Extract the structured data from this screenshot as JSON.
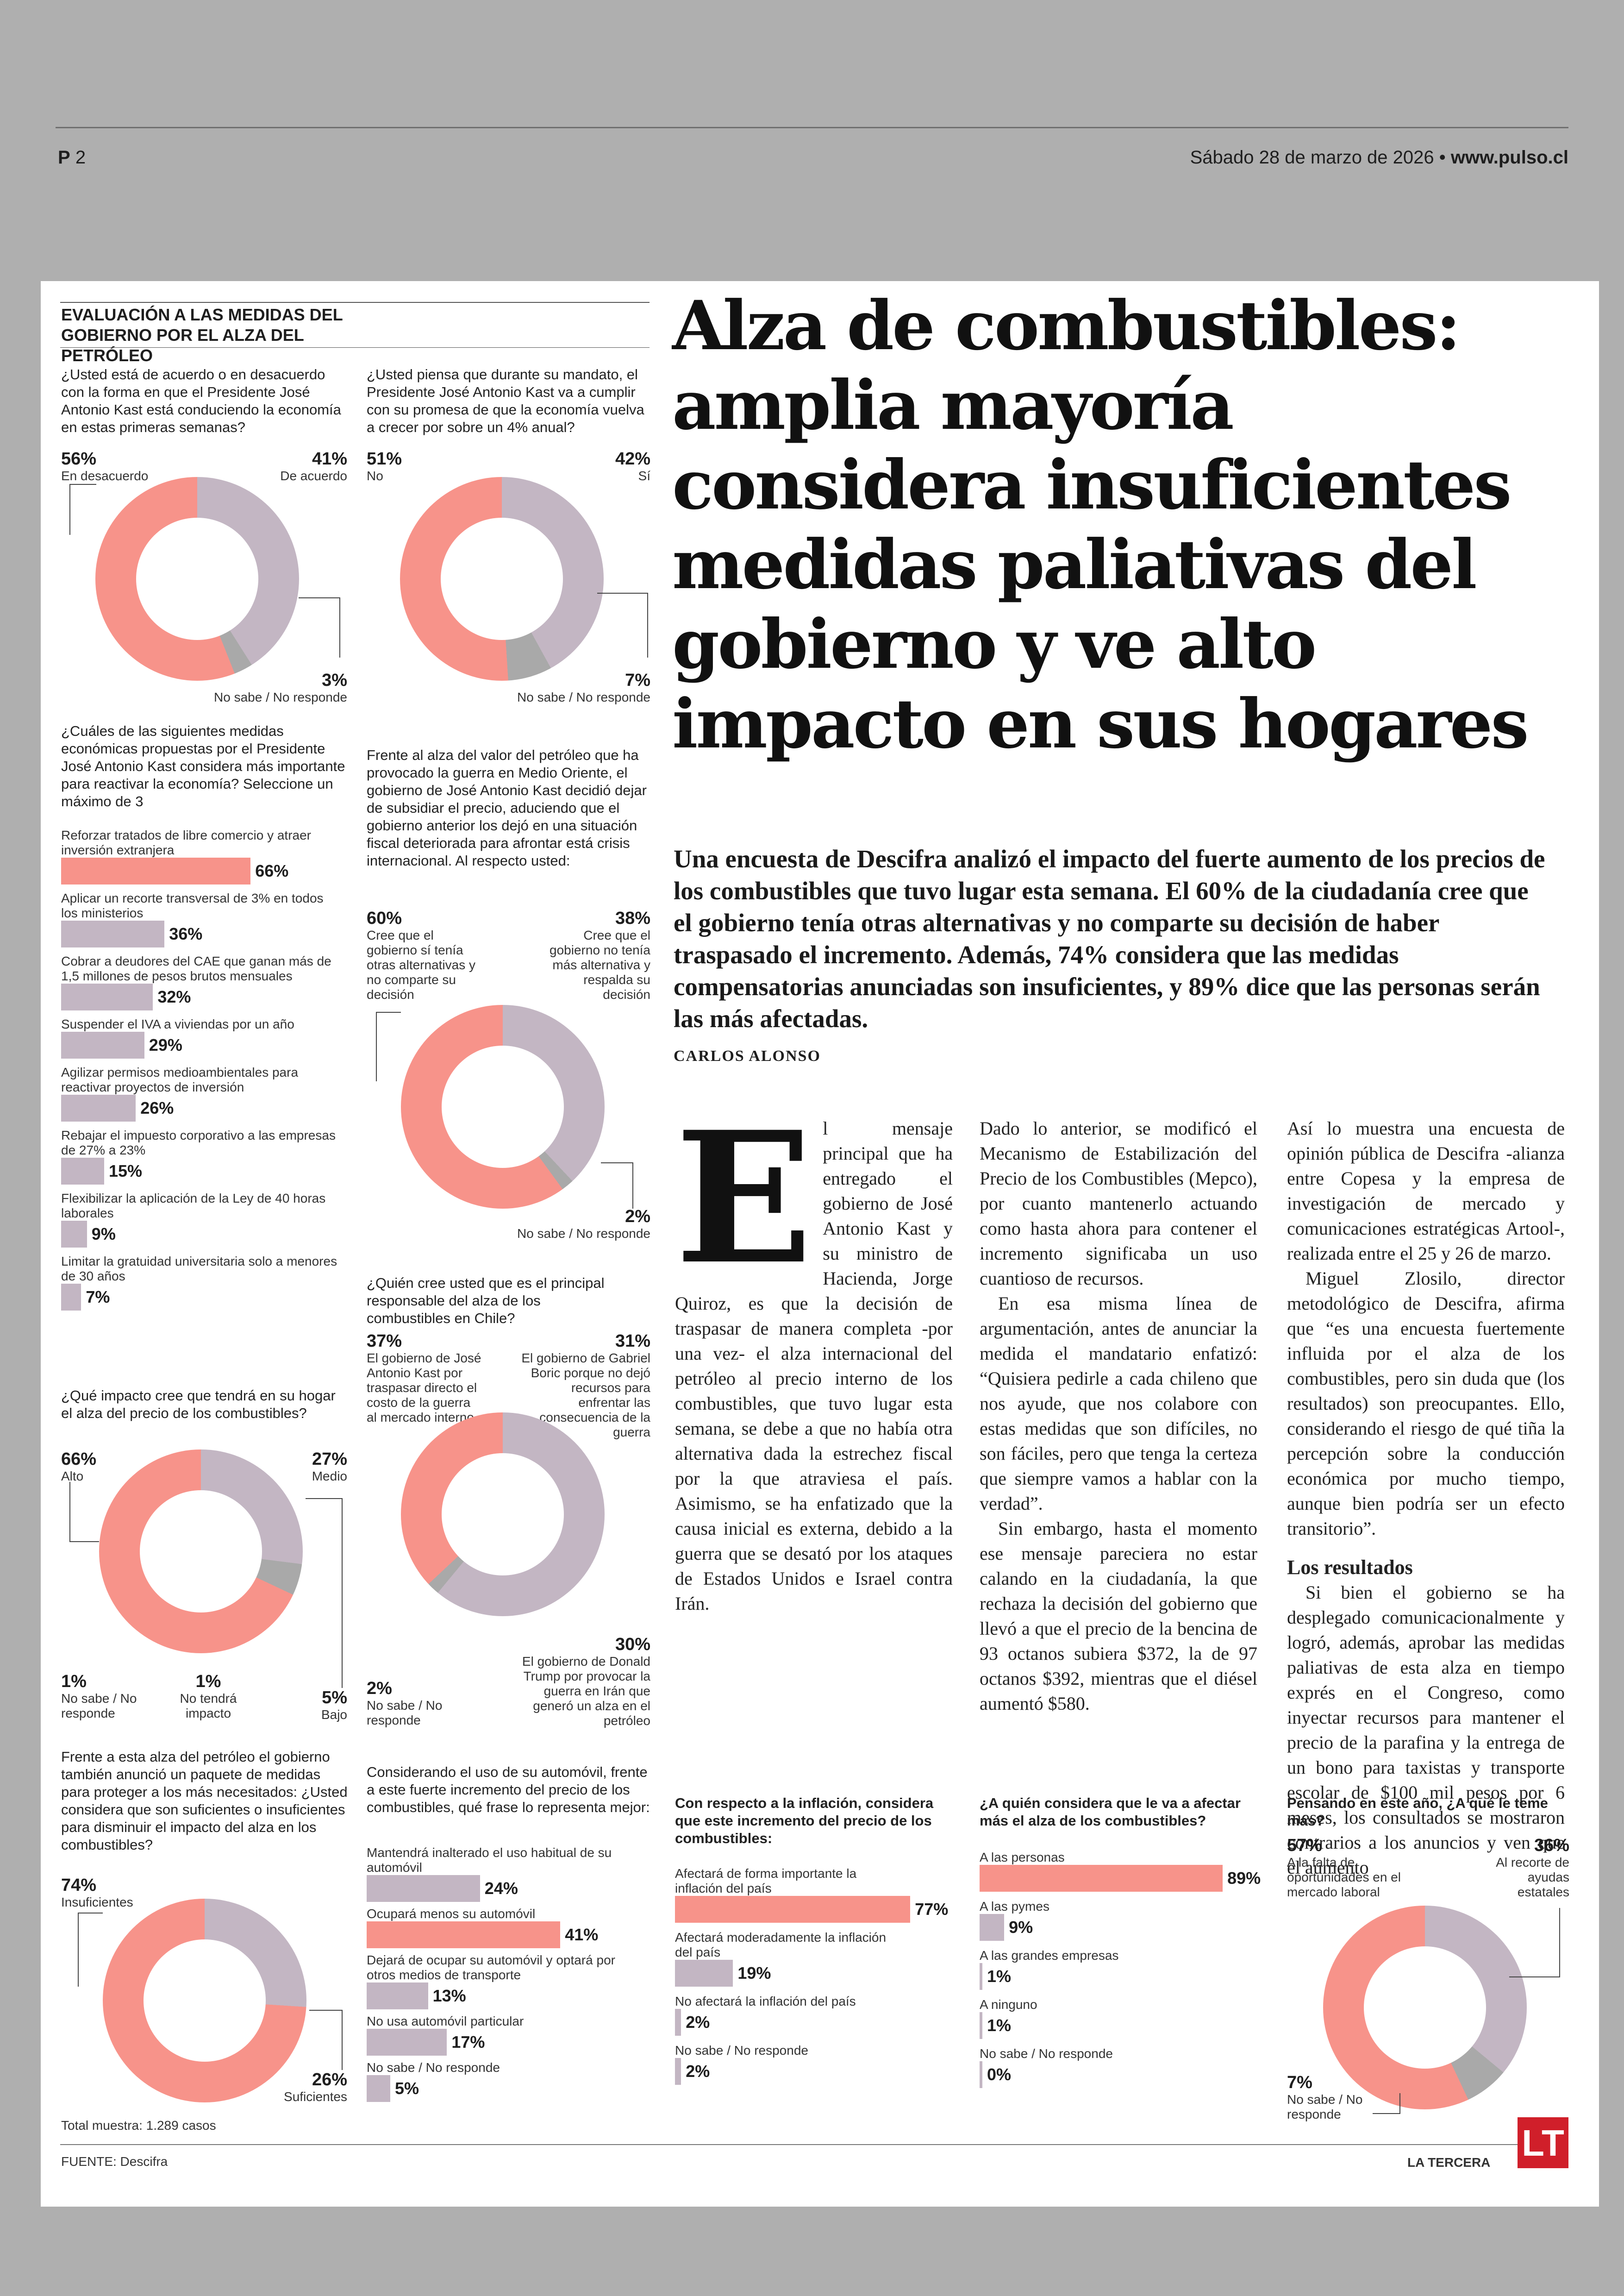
{
  "masthead": {
    "page_label": "P",
    "page_number": "2",
    "date": "Sábado 28 de marzo de 2026",
    "site": "www.pulso.cl"
  },
  "section_title": "EVALUACIÓN A LAS MEDIDAS DEL GOBIERNO POR EL ALZA DEL PETRÓLEO",
  "headline": "Alza de combustibles: amplia mayoría considera insuficientes medidas paliativas del gobierno y ve alto impacto en sus hogares",
  "lead": "Una encuesta de Descifra analizó el impacto del fuerte aumento de los precios de los combustibles que tuvo lugar esta semana. El 60% de la ciudadanía cree que el gobierno tenía otras alternativas y no comparte su decisión de haber traspasado el incremento. Además, 74% considera que las medidas compensatorias anunciadas son insuficientes, y 89% dice que las personas serán las más afectadas.",
  "byline": "CARLOS ALONSO",
  "colors": {
    "pink": "#f7938a",
    "mauve": "#c3b6c3",
    "grey": "#a9a9a9",
    "logo": "#d01f2a"
  },
  "chart_data": [
    {
      "type": "pie",
      "title": "¿Usted está de acuerdo o en desacuerdo con la forma en que el Presidente José Antonio Kast está conduciendo la economía en estas primeras semanas?",
      "slices": [
        {
          "pct": "56%",
          "label": "En desacuerdo",
          "value": 56
        },
        {
          "pct": "41%",
          "label": "De acuerdo",
          "value": 41
        },
        {
          "pct": "3%",
          "label": "No sabe / No responde",
          "value": 3
        }
      ]
    },
    {
      "type": "pie",
      "title": "¿Usted piensa que durante su mandato, el Presidente José Antonio Kast va a cumplir con su promesa de que la economía vuelva a crecer por sobre un 4% anual?",
      "slices": [
        {
          "pct": "51%",
          "label": "No",
          "value": 51
        },
        {
          "pct": "42%",
          "label": "Sí",
          "value": 42
        },
        {
          "pct": "7%",
          "label": "No sabe / No responde",
          "value": 7
        }
      ]
    },
    {
      "type": "bar",
      "title": "¿Cuáles de las siguientes medidas económicas propuestas por el Presidente José Antonio Kast considera más importante para reactivar la economía? Seleccione un máximo de 3",
      "items": [
        {
          "label": "Reforzar tratados de libre comercio y atraer inversión extranjera",
          "pct": "66%",
          "value": 66
        },
        {
          "label": "Aplicar un recorte transversal de 3% en todos los ministerios",
          "pct": "36%",
          "value": 36
        },
        {
          "label": "Cobrar a deudores del CAE que ganan más de 1,5 millones de pesos brutos mensuales",
          "pct": "32%",
          "value": 32
        },
        {
          "label": "Suspender el IVA a viviendas por un año",
          "pct": "29%",
          "value": 29
        },
        {
          "label": "Agilizar permisos medioambientales para reactivar proyectos de inversión",
          "pct": "26%",
          "value": 26
        },
        {
          "label": "Rebajar el impuesto corporativo a las empresas de 27% a 23%",
          "pct": "15%",
          "value": 15
        },
        {
          "label": "Flexibilizar la aplicación de la Ley de 40 horas laborales",
          "pct": "9%",
          "value": 9
        },
        {
          "label": "Limitar la gratuidad universitaria solo a menores de 30 años",
          "pct": "7%",
          "value": 7
        }
      ]
    },
    {
      "type": "pie",
      "title": "Frente al alza del valor del petróleo que ha provocado la guerra en Medio Oriente, el gobierno de José Antonio Kast decidió dejar de subsidiar el precio, aduciendo que el gobierno anterior los dejó en una situación fiscal deteriorada para afrontar está crisis internacional. Al respecto usted:",
      "slices": [
        {
          "pct": "60%",
          "label": "Cree que el gobierno sí tenía otras alternativas y no comparte su decisión",
          "value": 60
        },
        {
          "pct": "38%",
          "label": "Cree que el gobierno no tenía más alternativa y respalda su decisión",
          "value": 38
        },
        {
          "pct": "2%",
          "label": "No sabe / No responde",
          "value": 2
        }
      ]
    },
    {
      "type": "pie",
      "title": "¿Qué impacto cree que tendrá en su hogar el alza del precio de los combustibles?",
      "slices": [
        {
          "pct": "66%",
          "label": "Alto",
          "value": 66
        },
        {
          "pct": "27%",
          "label": "Medio",
          "value": 27
        },
        {
          "pct": "5%",
          "label": "Bajo",
          "value": 5
        },
        {
          "pct": "1%",
          "label": "No tendrá impacto",
          "value": 1
        },
        {
          "pct": "1%",
          "label": "No sabe / No responde",
          "value": 1
        }
      ]
    },
    {
      "type": "pie",
      "title": "¿Quién cree usted que es el principal responsable del alza de los combustibles en Chile?",
      "slices": [
        {
          "pct": "37%",
          "label": "El gobierno de José Antonio Kast por traspasar directo el costo de la guerra al mercado interno",
          "value": 37
        },
        {
          "pct": "31%",
          "label": "El gobierno de Gabriel Boric porque no dejó recursos para enfrentar las consecuencia de la guerra",
          "value": 31
        },
        {
          "pct": "30%",
          "label": "El gobierno de Donald Trump por provocar la guerra en Irán que generó un alza en el petróleo",
          "value": 30
        },
        {
          "pct": "2%",
          "label": "No sabe / No responde",
          "value": 2
        }
      ]
    },
    {
      "type": "pie",
      "title": "Frente a esta alza del petróleo el gobierno también anunció un paquete de medidas para proteger a los más necesitados: ¿Usted considera que son suficientes o insuficientes para disminuir el impacto del alza en los combustibles?",
      "slices": [
        {
          "pct": "74%",
          "label": "Insuficientes",
          "value": 74
        },
        {
          "pct": "26%",
          "label": "Suficientes",
          "value": 26
        }
      ],
      "note": "Total muestra: 1.289 casos"
    },
    {
      "type": "bar",
      "title": "Considerando el uso de su automóvil, frente a este fuerte incremento del precio de los combustibles, qué frase lo representa mejor:",
      "items": [
        {
          "label": "Mantendrá inalterado el uso habitual de su automóvil",
          "pct": "24%",
          "value": 24
        },
        {
          "label": "Ocupará menos su automóvil",
          "pct": "41%",
          "value": 41
        },
        {
          "label": "Dejará de ocupar su automóvil y optará por otros medios de transporte",
          "pct": "13%",
          "value": 13
        },
        {
          "label": "No usa automóvil particular",
          "pct": "17%",
          "value": 17
        },
        {
          "label": "No sabe / No responde",
          "pct": "5%",
          "value": 5
        }
      ]
    },
    {
      "type": "bar",
      "title": "Con respecto a la inflación, considera que este incremento del precio de los combustibles:",
      "items": [
        {
          "label": "Afectará de forma importante la inflación del país",
          "pct": "77%",
          "value": 77
        },
        {
          "label": "Afectará moderadamente la inflación del país",
          "pct": "19%",
          "value": 19
        },
        {
          "label": "No afectará la inflación del país",
          "pct": "2%",
          "value": 2
        },
        {
          "label": "No sabe / No responde",
          "pct": "2%",
          "value": 2
        }
      ]
    },
    {
      "type": "bar",
      "title": "¿A quién considera que le va a afectar más el alza de los combustibles?",
      "items": [
        {
          "label": "A las personas",
          "pct": "89%",
          "value": 89
        },
        {
          "label": "A las pymes",
          "pct": "9%",
          "value": 9
        },
        {
          "label": "A las grandes empresas",
          "pct": "1%",
          "value": 1
        },
        {
          "label": "A ninguno",
          "pct": "1%",
          "value": 1
        },
        {
          "label": "No sabe / No responde",
          "pct": "0%",
          "value": 0
        }
      ]
    },
    {
      "type": "pie",
      "title": "Pensando en este año, ¿A qué le teme más?",
      "slices": [
        {
          "pct": "57%",
          "label": "A la falta de oportunidades en el mercado laboral",
          "value": 57
        },
        {
          "pct": "36%",
          "label": "Al recorte de ayudas estatales",
          "value": 36
        },
        {
          "pct": "7%",
          "label": "No sabe / No responde",
          "value": 7
        }
      ]
    }
  ],
  "body": {
    "dropcap": "E",
    "p1": "l mensaje principal que ha entregado el gobierno de José Antonio Kast y su ministro de Hacienda, Jorge Quiroz, es que la decisión de traspasar de manera completa -por una vez- el alza internacional del petróleo al precio interno de los combustibles, que tuvo lugar esta semana, se debe a que no había otra alternativa dada la estrechez fiscal por la que atraviesa el país. Asimismo, se ha enfatizado que la causa inicial es externa, debido a la guerra que se desató por los ataques de Estados Unidos e Israel contra Irán.",
    "p2": "Dado lo anterior, se modificó el Mecanismo de Estabilización del Precio de los Combustibles (Mepco), por cuanto mantenerlo actuando como hasta ahora para contener el incremento significaba un uso cuantioso de recursos.",
    "p3": "En esa misma línea de argumentación, antes de anunciar la medida el mandatario enfatizó: “Quisiera pedirle a cada chileno que nos ayude, que nos colabore con estas medidas que son difíciles, no son fáciles, pero que tenga la certeza que siempre vamos a hablar con la verdad”.",
    "p4": "Sin embargo, hasta el momento ese mensaje pareciera no estar calando en la ciudadanía, la que rechaza la decisión del gobierno que llevó a que el precio de la bencina de 93 octanos subiera $372, la de 97 octanos $392, mientras que el diésel aumentó $580.",
    "p5": "Así lo muestra una encuesta de opinión pública de Descifra -alianza entre Copesa y la empresa de investigación de mercado y comunicaciones estratégicas Artool-, realizada entre el 25 y 26 de marzo.",
    "p6": "Miguel Zlosilo, director metodológico de Descifra, afirma que “es una encuesta fuertemente influida por el alza de los combustibles, pero sin duda que (los resultados) son preocupantes. Ello, considerando el riesgo de qué tiña la percepción sobre la conducción económica por mucho tiempo, aunque bien podría ser un efecto transitorio”.",
    "subhead": "Los resultados",
    "p7": "Si bien el gobierno se ha desplegado comunicacionalmente y logró, además, aprobar las medidas paliativas de esta alza en tiempo exprés en el Congreso, como inyectar recursos para mantener el precio de la parafina y la entrega de un bono para taxistas y transporte escolar de $100 mil pesos por 6 meses, los consultados se mostraron contrarios a los anuncios y ven que el aumento"
  },
  "footer": {
    "source": "FUENTE: Descifra",
    "brand": "LA TERCERA",
    "logo_text": "LT"
  }
}
